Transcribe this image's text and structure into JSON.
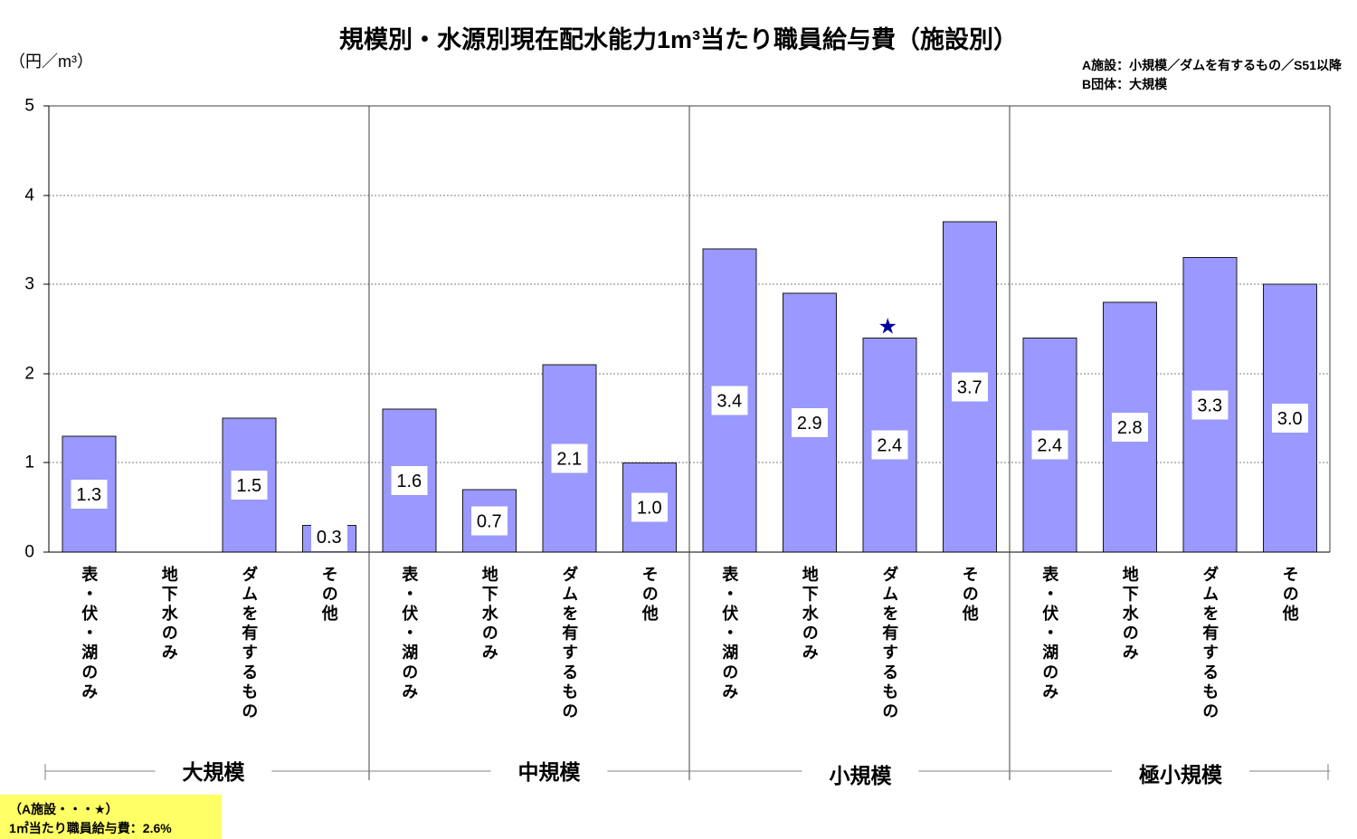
{
  "chart_data": {
    "type": "bar",
    "title": "規模別・水源別現在配水能力1m³当たり職員給与費（施設別）",
    "ylabel": "（円／m³）",
    "xlabel": "",
    "ylim": [
      0,
      5
    ],
    "yticks": [
      0,
      1,
      2,
      3,
      4,
      5
    ],
    "grid": true,
    "data_labels": true,
    "bar_color": "#9999FF",
    "categories": [
      "表・伏・湖のみ",
      "地下水のみ",
      "ダムを有するもの",
      "その他"
    ],
    "groups": [
      {
        "name": "大規模",
        "values": [
          1.3,
          null,
          1.5,
          0.3
        ]
      },
      {
        "name": "中規模",
        "values": [
          1.6,
          0.7,
          2.1,
          1.0
        ]
      },
      {
        "name": "小規模",
        "values": [
          3.4,
          2.9,
          2.4,
          3.7
        ]
      },
      {
        "name": "極小規模",
        "values": [
          2.4,
          2.8,
          3.3,
          3.0
        ]
      }
    ],
    "annotations": [
      {
        "marker": "★",
        "group": "小規模",
        "category": "ダムを有するもの",
        "color": "#000099"
      }
    ]
  },
  "notes": {
    "facility_a": "A施設：小規模／ダムを有するもの／S51以降",
    "group_b": "B団体：大規模"
  },
  "callout": {
    "title": "（A施設・・・★）",
    "value": "1㎡当たり職員給与費：2.6%",
    "background": "#FFFF66"
  }
}
